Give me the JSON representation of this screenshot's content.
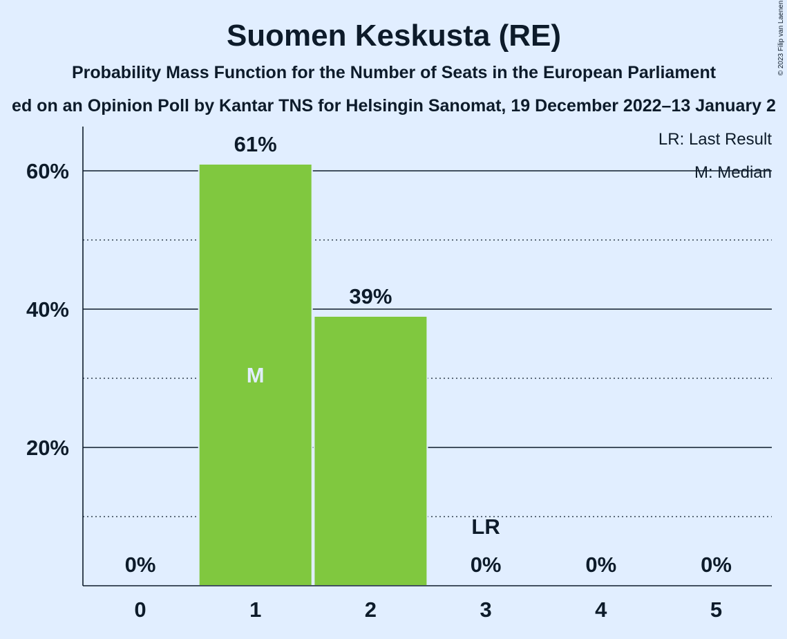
{
  "chart_data": {
    "type": "bar",
    "title": "Suomen Keskusta (RE)",
    "subtitle": "Probability Mass Function for the Number of Seats in the European Parliament",
    "source": "ed on an Opinion Poll by Kantar TNS for Helsingin Sanomat, 19 December 2022–13 January 2",
    "copyright": "© 2023 Filip van Laenen",
    "categories": [
      "0",
      "1",
      "2",
      "3",
      "4",
      "5"
    ],
    "values": [
      0,
      61,
      39,
      0,
      0,
      0
    ],
    "value_labels": [
      "0%",
      "61%",
      "39%",
      "0%",
      "0%",
      "0%"
    ],
    "ylim": [
      0,
      66
    ],
    "y_ticks": [
      20,
      40,
      60
    ],
    "y_tick_labels": [
      "20%",
      "40%",
      "60%"
    ],
    "y_minor_ticks": [
      10,
      30,
      50
    ],
    "median_category": "1",
    "median_marker": "M",
    "last_result_category": "3",
    "last_result_marker": "LR",
    "legend": [
      "LR: Last Result",
      "M: Median"
    ],
    "legend_position": "top-right",
    "colors": {
      "bar": "#80c83f",
      "background": "#e1eeff",
      "text": "#0d1b2a",
      "median_text": "#e1eeff"
    }
  }
}
